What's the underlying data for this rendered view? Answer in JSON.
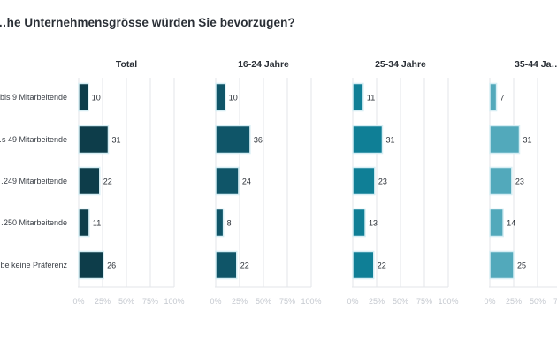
{
  "chart_data": {
    "type": "bar",
    "orientation": "horizontal",
    "title": "…he Unternehmensgrösse würden Sie bevorzugen?",
    "categories": [
      "…bis 9 Mitarbeitende",
      "…s 49 Mitarbeitende",
      "…249 Mitarbeitende",
      "…250 Mitarbeitende",
      "…be keine Präferenz"
    ],
    "xlim": [
      0,
      100
    ],
    "xticks": [
      "0%",
      "25%",
      "50%",
      "75%",
      "100%"
    ],
    "grid": true,
    "series": [
      {
        "name": "Total",
        "values": [
          10,
          31,
          22,
          11,
          26
        ],
        "color": "#0d3d4a"
      },
      {
        "name": "16-24 Jahre",
        "values": [
          10,
          36,
          24,
          8,
          22
        ],
        "color": "#0f5568"
      },
      {
        "name": "25-34 Jahre",
        "values": [
          11,
          31,
          23,
          13,
          22
        ],
        "color": "#0f7f96"
      },
      {
        "name": "35-44 Ja…",
        "values": [
          7,
          31,
          23,
          14,
          25
        ],
        "color": "#52a9bb"
      }
    ]
  }
}
